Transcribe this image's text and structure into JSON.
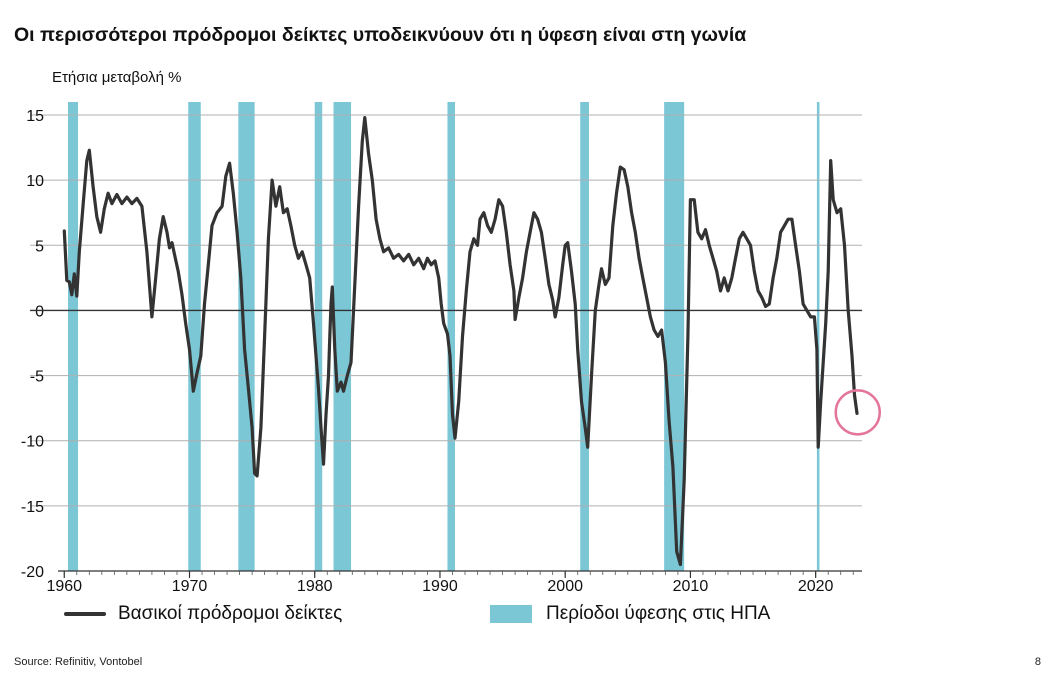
{
  "title": "Οι περισσότεροι πρόδρομοι δείκτες υποδεικνύουν ότι η ύφεση είναι στη γωνία",
  "source": "Source: Refinitiv, Vontobel",
  "page_number": "8",
  "colors": {
    "line": "#333333",
    "recession": "#7bc7d6",
    "grid": "#b0b0b0",
    "zero": "#333333",
    "highlight": "#e4759a"
  },
  "chart_data": {
    "type": "line",
    "ylabel": "Ετήσια μεταβολή %",
    "xlim": [
      1959.5,
      2023.7
    ],
    "ylim": [
      -20,
      15
    ],
    "yticks": [
      15,
      10,
      5,
      0,
      -5,
      -10,
      -15,
      -20
    ],
    "xticks": [
      1960,
      1970,
      1980,
      1990,
      2000,
      2010,
      2020
    ],
    "grid": true,
    "legend": {
      "position": "bottom",
      "series_label": "Βασικοί πρόδρομοι δείκτες",
      "recession_label": "Περίοδοι ύφεσης στις ΗΠΑ"
    },
    "recessions": [
      [
        1960.3,
        1961.1
      ],
      [
        1969.9,
        1970.9
      ],
      [
        1973.9,
        1975.2
      ],
      [
        1980.0,
        1980.6
      ],
      [
        1981.5,
        1982.9
      ],
      [
        1990.6,
        1991.2
      ],
      [
        2001.2,
        2001.9
      ],
      [
        2007.9,
        2009.5
      ],
      [
        2020.1,
        2020.3
      ]
    ],
    "highlight": {
      "x": 2023.2,
      "y": -7.9,
      "label": ""
    },
    "series": [
      {
        "name": "Βασικοί πρόδρομοι δείκτες",
        "points": [
          [
            1960.0,
            6.1
          ],
          [
            1960.2,
            2.3
          ],
          [
            1960.4,
            2.2
          ],
          [
            1960.6,
            1.2
          ],
          [
            1960.8,
            2.8
          ],
          [
            1961.0,
            1.1
          ],
          [
            1961.2,
            4.5
          ],
          [
            1961.5,
            8.0
          ],
          [
            1961.8,
            11.5
          ],
          [
            1962.0,
            12.3
          ],
          [
            1962.3,
            9.5
          ],
          [
            1962.6,
            7.2
          ],
          [
            1962.9,
            6.0
          ],
          [
            1963.2,
            7.8
          ],
          [
            1963.5,
            9.0
          ],
          [
            1963.8,
            8.2
          ],
          [
            1964.2,
            8.9
          ],
          [
            1964.6,
            8.2
          ],
          [
            1965.0,
            8.7
          ],
          [
            1965.4,
            8.2
          ],
          [
            1965.8,
            8.6
          ],
          [
            1966.2,
            8.0
          ],
          [
            1966.6,
            4.5
          ],
          [
            1966.8,
            2.0
          ],
          [
            1967.0,
            -0.5
          ],
          [
            1967.3,
            2.5
          ],
          [
            1967.6,
            5.5
          ],
          [
            1967.9,
            7.2
          ],
          [
            1968.2,
            6.0
          ],
          [
            1968.4,
            4.8
          ],
          [
            1968.6,
            5.2
          ],
          [
            1968.8,
            4.3
          ],
          [
            1969.1,
            3.0
          ],
          [
            1969.4,
            1.2
          ],
          [
            1969.7,
            -1.0
          ],
          [
            1970.0,
            -3.0
          ],
          [
            1970.3,
            -6.2
          ],
          [
            1970.6,
            -4.8
          ],
          [
            1970.9,
            -3.5
          ],
          [
            1971.2,
            0.5
          ],
          [
            1971.5,
            3.5
          ],
          [
            1971.8,
            6.5
          ],
          [
            1972.2,
            7.5
          ],
          [
            1972.6,
            8.0
          ],
          [
            1972.9,
            10.3
          ],
          [
            1973.2,
            11.3
          ],
          [
            1973.5,
            9.0
          ],
          [
            1973.8,
            6.0
          ],
          [
            1974.1,
            2.5
          ],
          [
            1974.4,
            -3.0
          ],
          [
            1974.7,
            -6.0
          ],
          [
            1975.0,
            -9.0
          ],
          [
            1975.2,
            -12.5
          ],
          [
            1975.4,
            -12.7
          ],
          [
            1975.7,
            -9.0
          ],
          [
            1976.0,
            -2.0
          ],
          [
            1976.3,
            5.5
          ],
          [
            1976.6,
            10.0
          ],
          [
            1976.9,
            8.0
          ],
          [
            1977.2,
            9.5
          ],
          [
            1977.5,
            7.5
          ],
          [
            1977.8,
            7.8
          ],
          [
            1978.1,
            6.5
          ],
          [
            1978.4,
            5.0
          ],
          [
            1978.7,
            4.0
          ],
          [
            1979.0,
            4.5
          ],
          [
            1979.3,
            3.5
          ],
          [
            1979.6,
            2.5
          ],
          [
            1979.9,
            -1.0
          ],
          [
            1980.1,
            -3.5
          ],
          [
            1980.3,
            -6.0
          ],
          [
            1980.5,
            -9.0
          ],
          [
            1980.7,
            -11.8
          ],
          [
            1980.9,
            -8.0
          ],
          [
            1981.1,
            -5.0
          ],
          [
            1981.2,
            -2.0
          ],
          [
            1981.3,
            0.5
          ],
          [
            1981.4,
            1.8
          ],
          [
            1981.6,
            -3.0
          ],
          [
            1981.8,
            -6.2
          ],
          [
            1982.1,
            -5.5
          ],
          [
            1982.3,
            -6.2
          ],
          [
            1982.6,
            -5.0
          ],
          [
            1982.9,
            -4.0
          ],
          [
            1983.2,
            2.0
          ],
          [
            1983.5,
            8.0
          ],
          [
            1983.8,
            13.0
          ],
          [
            1984.0,
            14.8
          ],
          [
            1984.3,
            12.0
          ],
          [
            1984.6,
            10.0
          ],
          [
            1984.9,
            7.0
          ],
          [
            1985.2,
            5.5
          ],
          [
            1985.5,
            4.5
          ],
          [
            1985.9,
            4.8
          ],
          [
            1986.3,
            4.0
          ],
          [
            1986.7,
            4.3
          ],
          [
            1987.1,
            3.8
          ],
          [
            1987.5,
            4.3
          ],
          [
            1987.9,
            3.5
          ],
          [
            1988.3,
            4.0
          ],
          [
            1988.7,
            3.2
          ],
          [
            1989.0,
            4.0
          ],
          [
            1989.3,
            3.5
          ],
          [
            1989.6,
            3.8
          ],
          [
            1989.9,
            2.5
          ],
          [
            1990.1,
            0.5
          ],
          [
            1990.3,
            -1.0
          ],
          [
            1990.6,
            -1.8
          ],
          [
            1990.8,
            -3.5
          ],
          [
            1991.0,
            -8.0
          ],
          [
            1991.2,
            -9.8
          ],
          [
            1991.5,
            -7.0
          ],
          [
            1991.8,
            -2.0
          ],
          [
            1992.1,
            1.5
          ],
          [
            1992.4,
            4.5
          ],
          [
            1992.7,
            5.5
          ],
          [
            1993.0,
            5.0
          ],
          [
            1993.2,
            7.0
          ],
          [
            1993.5,
            7.5
          ],
          [
            1993.8,
            6.5
          ],
          [
            1994.1,
            6.0
          ],
          [
            1994.4,
            7.0
          ],
          [
            1994.7,
            8.5
          ],
          [
            1995.0,
            8.0
          ],
          [
            1995.3,
            6.0
          ],
          [
            1995.6,
            3.5
          ],
          [
            1995.9,
            1.5
          ],
          [
            1996.0,
            -0.7
          ],
          [
            1996.3,
            1.0
          ],
          [
            1996.6,
            2.5
          ],
          [
            1996.9,
            4.5
          ],
          [
            1997.2,
            6.0
          ],
          [
            1997.5,
            7.5
          ],
          [
            1997.8,
            7.0
          ],
          [
            1998.1,
            6.0
          ],
          [
            1998.4,
            4.0
          ],
          [
            1998.7,
            2.0
          ],
          [
            1999.0,
            0.8
          ],
          [
            1999.2,
            -0.5
          ],
          [
            1999.5,
            1.0
          ],
          [
            1999.8,
            3.5
          ],
          [
            2000.0,
            5.0
          ],
          [
            2000.2,
            5.2
          ],
          [
            2000.5,
            3.0
          ],
          [
            2000.8,
            0.5
          ],
          [
            2001.0,
            -3.0
          ],
          [
            2001.3,
            -7.0
          ],
          [
            2001.6,
            -9.0
          ],
          [
            2001.8,
            -10.5
          ],
          [
            2002.1,
            -5.0
          ],
          [
            2002.4,
            0.0
          ],
          [
            2002.7,
            2.0
          ],
          [
            2002.9,
            3.2
          ],
          [
            2003.2,
            2.0
          ],
          [
            2003.5,
            2.5
          ],
          [
            2003.8,
            6.5
          ],
          [
            2004.1,
            9.0
          ],
          [
            2004.4,
            11.0
          ],
          [
            2004.7,
            10.8
          ],
          [
            2005.0,
            9.5
          ],
          [
            2005.3,
            7.5
          ],
          [
            2005.6,
            6.0
          ],
          [
            2005.9,
            4.0
          ],
          [
            2006.2,
            2.5
          ],
          [
            2006.5,
            1.0
          ],
          [
            2006.8,
            -0.5
          ],
          [
            2007.1,
            -1.5
          ],
          [
            2007.4,
            -2.0
          ],
          [
            2007.7,
            -1.5
          ],
          [
            2008.0,
            -4.0
          ],
          [
            2008.3,
            -8.5
          ],
          [
            2008.6,
            -12.0
          ],
          [
            2008.9,
            -18.5
          ],
          [
            2009.2,
            -19.5
          ],
          [
            2009.5,
            -13.0
          ],
          [
            2009.8,
            -2.0
          ],
          [
            2010.0,
            8.5
          ],
          [
            2010.3,
            8.5
          ],
          [
            2010.6,
            6.0
          ],
          [
            2010.9,
            5.5
          ],
          [
            2011.2,
            6.2
          ],
          [
            2011.5,
            5.0
          ],
          [
            2011.8,
            4.0
          ],
          [
            2012.1,
            3.0
          ],
          [
            2012.4,
            1.5
          ],
          [
            2012.7,
            2.5
          ],
          [
            2013.0,
            1.5
          ],
          [
            2013.3,
            2.5
          ],
          [
            2013.6,
            4.0
          ],
          [
            2013.9,
            5.5
          ],
          [
            2014.2,
            6.0
          ],
          [
            2014.5,
            5.5
          ],
          [
            2014.8,
            5.0
          ],
          [
            2015.1,
            3.0
          ],
          [
            2015.4,
            1.5
          ],
          [
            2015.7,
            1.0
          ],
          [
            2016.0,
            0.3
          ],
          [
            2016.3,
            0.5
          ],
          [
            2016.6,
            2.5
          ],
          [
            2016.9,
            4.0
          ],
          [
            2017.2,
            6.0
          ],
          [
            2017.5,
            6.5
          ],
          [
            2017.8,
            7.0
          ],
          [
            2018.1,
            7.0
          ],
          [
            2018.4,
            5.0
          ],
          [
            2018.7,
            3.0
          ],
          [
            2019.0,
            0.5
          ],
          [
            2019.3,
            0.0
          ],
          [
            2019.6,
            -0.5
          ],
          [
            2019.9,
            -0.5
          ],
          [
            2020.1,
            -3.0
          ],
          [
            2020.2,
            -10.5
          ],
          [
            2020.4,
            -7.0
          ],
          [
            2020.6,
            -4.0
          ],
          [
            2020.8,
            -1.0
          ],
          [
            2021.0,
            3.0
          ],
          [
            2021.2,
            11.5
          ],
          [
            2021.4,
            8.5
          ],
          [
            2021.7,
            7.5
          ],
          [
            2022.0,
            7.8
          ],
          [
            2022.3,
            5.0
          ],
          [
            2022.6,
            0.0
          ],
          [
            2022.9,
            -3.5
          ],
          [
            2023.1,
            -6.5
          ],
          [
            2023.3,
            -7.9
          ]
        ]
      }
    ]
  }
}
